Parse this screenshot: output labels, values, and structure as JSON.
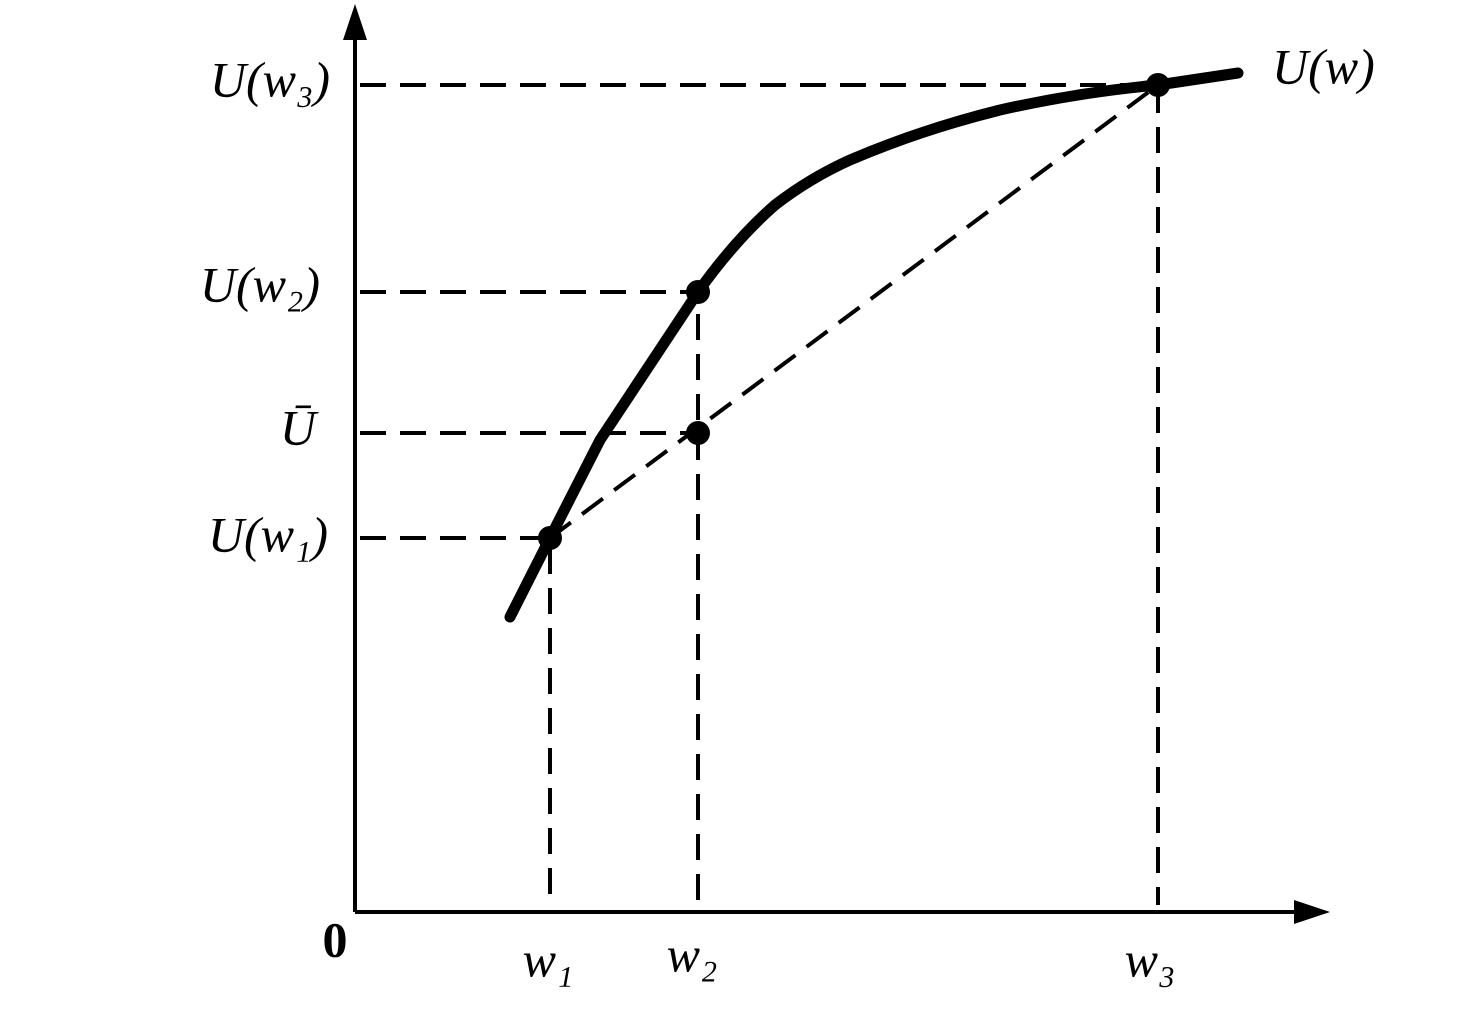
{
  "origin_label": "0",
  "curve_label": "U(w)",
  "y_labels": [
    "U(w₃)",
    "U(w₂)",
    "Ū",
    "U(w₁)"
  ],
  "x_labels": [
    "w₁",
    "w₂",
    "w₃"
  ]
}
